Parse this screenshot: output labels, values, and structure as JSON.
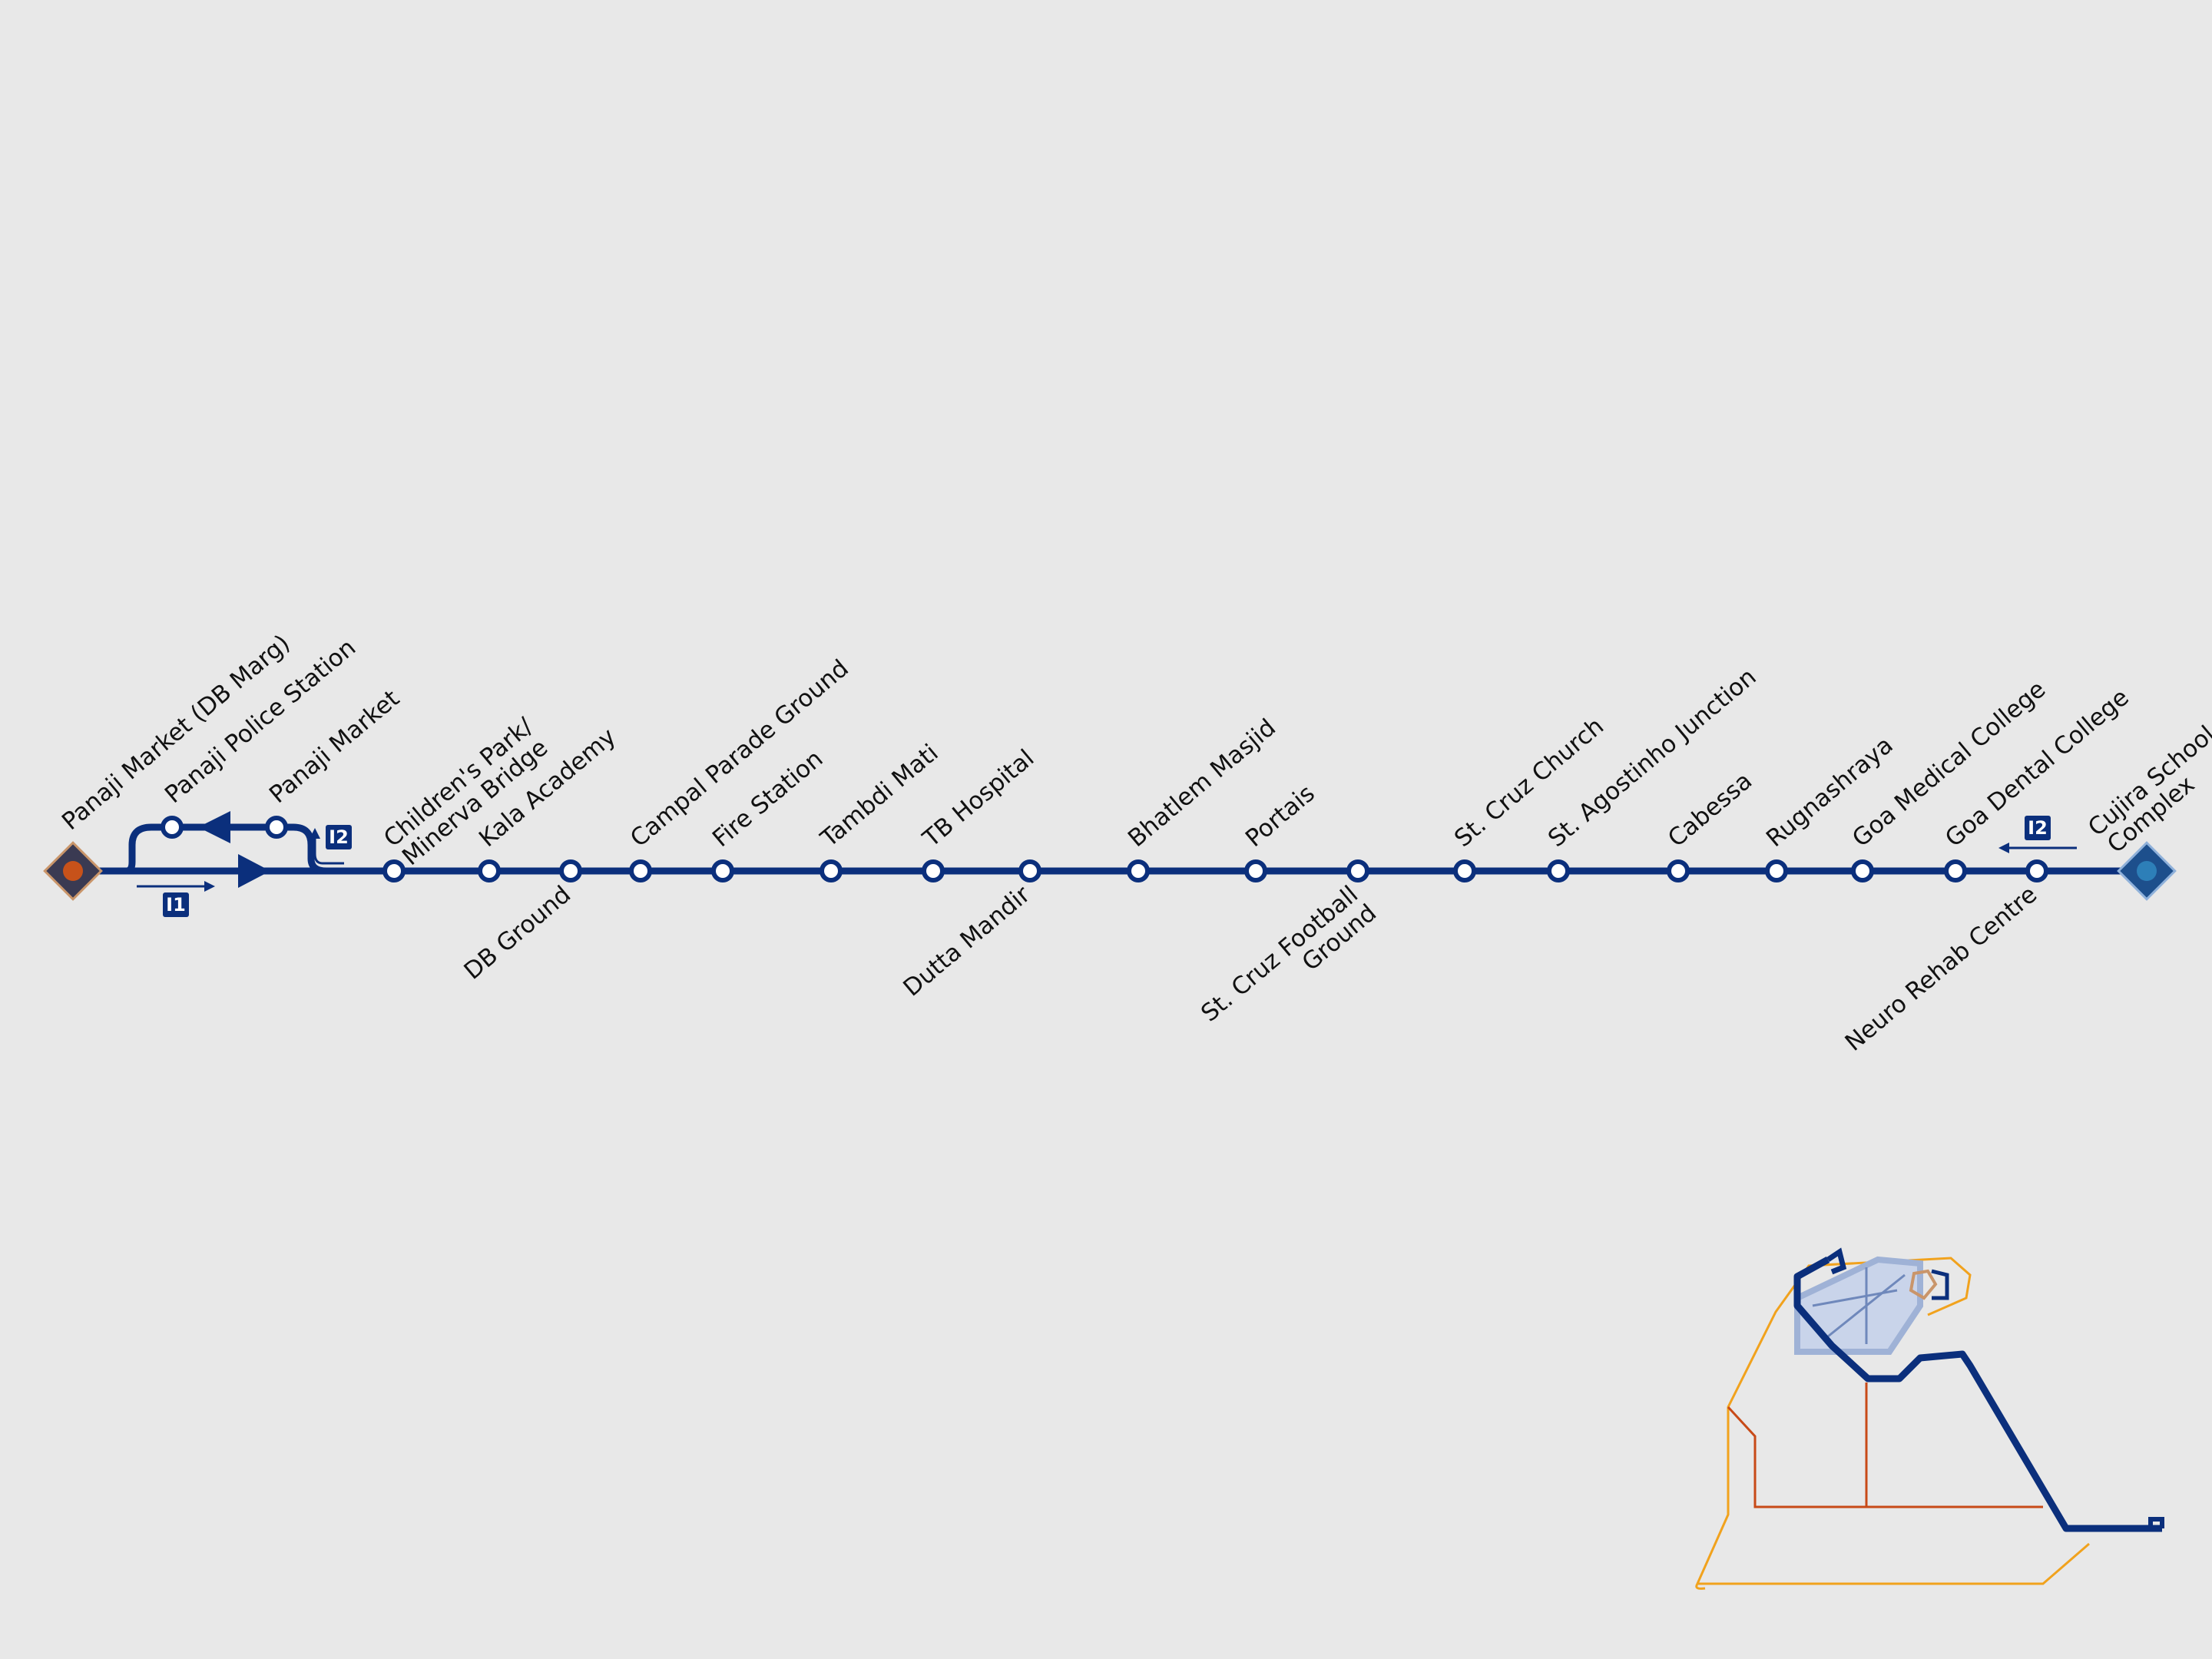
{
  "colors": {
    "background": "#e8e8e8",
    "line": "#0b2f7c",
    "station_fill": "#ffffff",
    "terminal_west_fill": "#c7521a",
    "terminal_west_frame": "#3a3a52",
    "terminal_east_fill": "#2d7fb8",
    "terminal_east_frame": "#1d4f8c",
    "minimap_orange": "#f1a21d",
    "minimap_red": "#c84a18",
    "minimap_blue": "#0b2f7c",
    "minimap_light": "#9fb2d6"
  },
  "terminals": {
    "west": "Panaji Market (DB Marg)",
    "east_line1": "Cujira School",
    "east_line2": "Complex"
  },
  "loop_stations": [
    "Panaji Police Station",
    "Panaji Market"
  ],
  "stations": [
    {
      "name": "Children's Park/",
      "name2": "Minerva Bridge",
      "side": "above"
    },
    {
      "name": "Kala Academy",
      "side": "above"
    },
    {
      "name": "DB Ground",
      "side": "below"
    },
    {
      "name": "Campal Parade Ground",
      "side": "above"
    },
    {
      "name": "Fire Station",
      "side": "above"
    },
    {
      "name": "Tambdi Mati",
      "side": "above"
    },
    {
      "name": "TB Hospital",
      "side": "above"
    },
    {
      "name": "Dutta Mandir",
      "side": "below"
    },
    {
      "name": "Bhatlem Masjid",
      "side": "above"
    },
    {
      "name": "Portais",
      "side": "above"
    },
    {
      "name": "St. Cruz Football",
      "name2": "Ground",
      "side": "below"
    },
    {
      "name": "St. Cruz Church",
      "side": "above"
    },
    {
      "name": "St. Agostinho Junction",
      "side": "above"
    },
    {
      "name": "Cabessa",
      "side": "above"
    },
    {
      "name": "Rugnashraya",
      "side": "above"
    },
    {
      "name": "Goa Medical College",
      "side": "above"
    },
    {
      "name": "Goa Dental College",
      "side": "above"
    },
    {
      "name": "Neuro Rehab Centre",
      "side": "below"
    }
  ],
  "direction_tags": {
    "outbound": "I1",
    "loop_return": "I2",
    "east_return": "I2"
  },
  "minimap": {
    "icon": "route-network-minimap"
  }
}
